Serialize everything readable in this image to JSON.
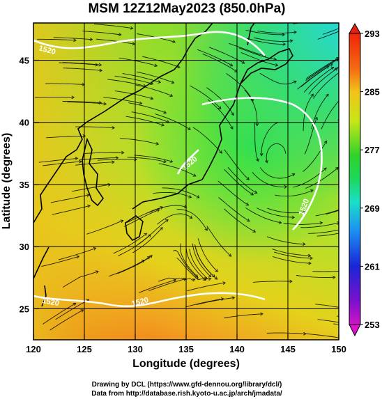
{
  "title": "MSM 12Z12May2023 (850.0hPa)",
  "x_axis": {
    "label": "Longitude (degrees)",
    "ticks": [
      "120",
      "125",
      "130",
      "135",
      "140",
      "145",
      "150"
    ]
  },
  "y_axis": {
    "label": "Latitude  (degrees)",
    "ticks": [
      "25",
      "30",
      "35",
      "40",
      "45"
    ]
  },
  "colorbar": {
    "ticks": [
      "293",
      "285",
      "277",
      "269",
      "261",
      "253"
    ]
  },
  "contour_labels": [
    "1520",
    "1520",
    "1520",
    "1520",
    "1520"
  ],
  "credits": [
    "Drawing by DCL (https://www.gfd-dennou.org/library/dcl/)",
    "Data from http://database.rish.kyoto-u.ac.jp/arch/jmadata/"
  ],
  "chart_data": {
    "type": "heatmap",
    "title": "MSM 12Z12May2023 (850.0hPa)",
    "xlabel": "Longitude (degrees)",
    "ylabel": "Latitude  (degrees)",
    "xlim": [
      120,
      150
    ],
    "ylim": [
      22.5,
      48
    ],
    "x_ticks": [
      120,
      125,
      130,
      135,
      140,
      145,
      150
    ],
    "y_ticks": [
      25,
      30,
      35,
      40,
      45
    ],
    "colorbar_range": [
      253,
      293
    ],
    "colorbar_ticks": [
      293,
      285,
      277,
      269,
      261,
      253
    ],
    "contour_value": 1520,
    "grid": true,
    "legend": "colorbar right"
  }
}
